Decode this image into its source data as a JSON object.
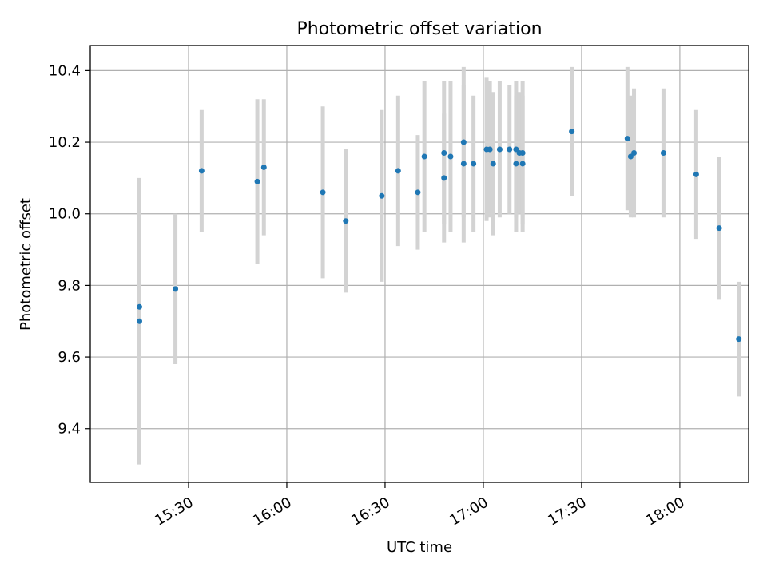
{
  "chart_data": {
    "type": "scatter",
    "title": "Photometric offset variation",
    "xlabel": "UTC time",
    "ylabel": "Photometric offset",
    "x_unit": "UTC time (HH:MM)",
    "xlim": [
      "15:00",
      "18:21"
    ],
    "ylim": [
      9.25,
      10.47
    ],
    "grid": true,
    "x_ticks": [
      "15:30",
      "16:00",
      "16:30",
      "17:00",
      "17:30",
      "18:00"
    ],
    "y_ticks": [
      "9.4",
      "9.6",
      "9.8",
      "10.0",
      "10.2",
      "10.4"
    ],
    "colors": {
      "marker": "#1f77b4",
      "errorbar": "#d3d3d3",
      "grid": "#b0b0b0"
    },
    "points": [
      {
        "x": "15:15",
        "y": 9.7,
        "err": 0.4
      },
      {
        "x": "15:15",
        "y": 9.74,
        "err": 0.35
      },
      {
        "x": "15:26",
        "y": 9.79,
        "err": 0.21
      },
      {
        "x": "15:34",
        "y": 10.12,
        "err": 0.17
      },
      {
        "x": "15:51",
        "y": 10.09,
        "err": 0.23
      },
      {
        "x": "15:53",
        "y": 10.13,
        "err": 0.19
      },
      {
        "x": "16:11",
        "y": 10.06,
        "err": 0.24
      },
      {
        "x": "16:18",
        "y": 9.98,
        "err": 0.2
      },
      {
        "x": "16:29",
        "y": 10.05,
        "err": 0.24
      },
      {
        "x": "16:34",
        "y": 10.12,
        "err": 0.21
      },
      {
        "x": "16:40",
        "y": 10.06,
        "err": 0.16
      },
      {
        "x": "16:42",
        "y": 10.16,
        "err": 0.21
      },
      {
        "x": "16:48",
        "y": 10.17,
        "err": 0.2
      },
      {
        "x": "16:48",
        "y": 10.1,
        "err": 0.18
      },
      {
        "x": "16:50",
        "y": 10.16,
        "err": 0.21
      },
      {
        "x": "16:54",
        "y": 10.14,
        "err": 0.22
      },
      {
        "x": "16:54",
        "y": 10.2,
        "err": 0.21
      },
      {
        "x": "16:57",
        "y": 10.14,
        "err": 0.19
      },
      {
        "x": "17:01",
        "y": 10.18,
        "err": 0.2
      },
      {
        "x": "17:02",
        "y": 10.18,
        "err": 0.19
      },
      {
        "x": "17:03",
        "y": 10.14,
        "err": 0.2
      },
      {
        "x": "17:05",
        "y": 10.18,
        "err": 0.19
      },
      {
        "x": "17:08",
        "y": 10.18,
        "err": 0.18
      },
      {
        "x": "17:10",
        "y": 10.18,
        "err": 0.19
      },
      {
        "x": "17:10",
        "y": 10.14,
        "err": 0.19
      },
      {
        "x": "17:11",
        "y": 10.17,
        "err": 0.17
      },
      {
        "x": "17:12",
        "y": 10.17,
        "err": 0.2
      },
      {
        "x": "17:12",
        "y": 10.14,
        "err": 0.19
      },
      {
        "x": "17:27",
        "y": 10.23,
        "err": 0.18
      },
      {
        "x": "17:44",
        "y": 10.21,
        "err": 0.2
      },
      {
        "x": "17:45",
        "y": 10.16,
        "err": 0.17
      },
      {
        "x": "17:46",
        "y": 10.17,
        "err": 0.18
      },
      {
        "x": "17:55",
        "y": 10.17,
        "err": 0.18
      },
      {
        "x": "18:05",
        "y": 10.11,
        "err": 0.18
      },
      {
        "x": "18:12",
        "y": 9.96,
        "err": 0.2
      },
      {
        "x": "18:18",
        "y": 9.65,
        "err": 0.16
      }
    ]
  }
}
